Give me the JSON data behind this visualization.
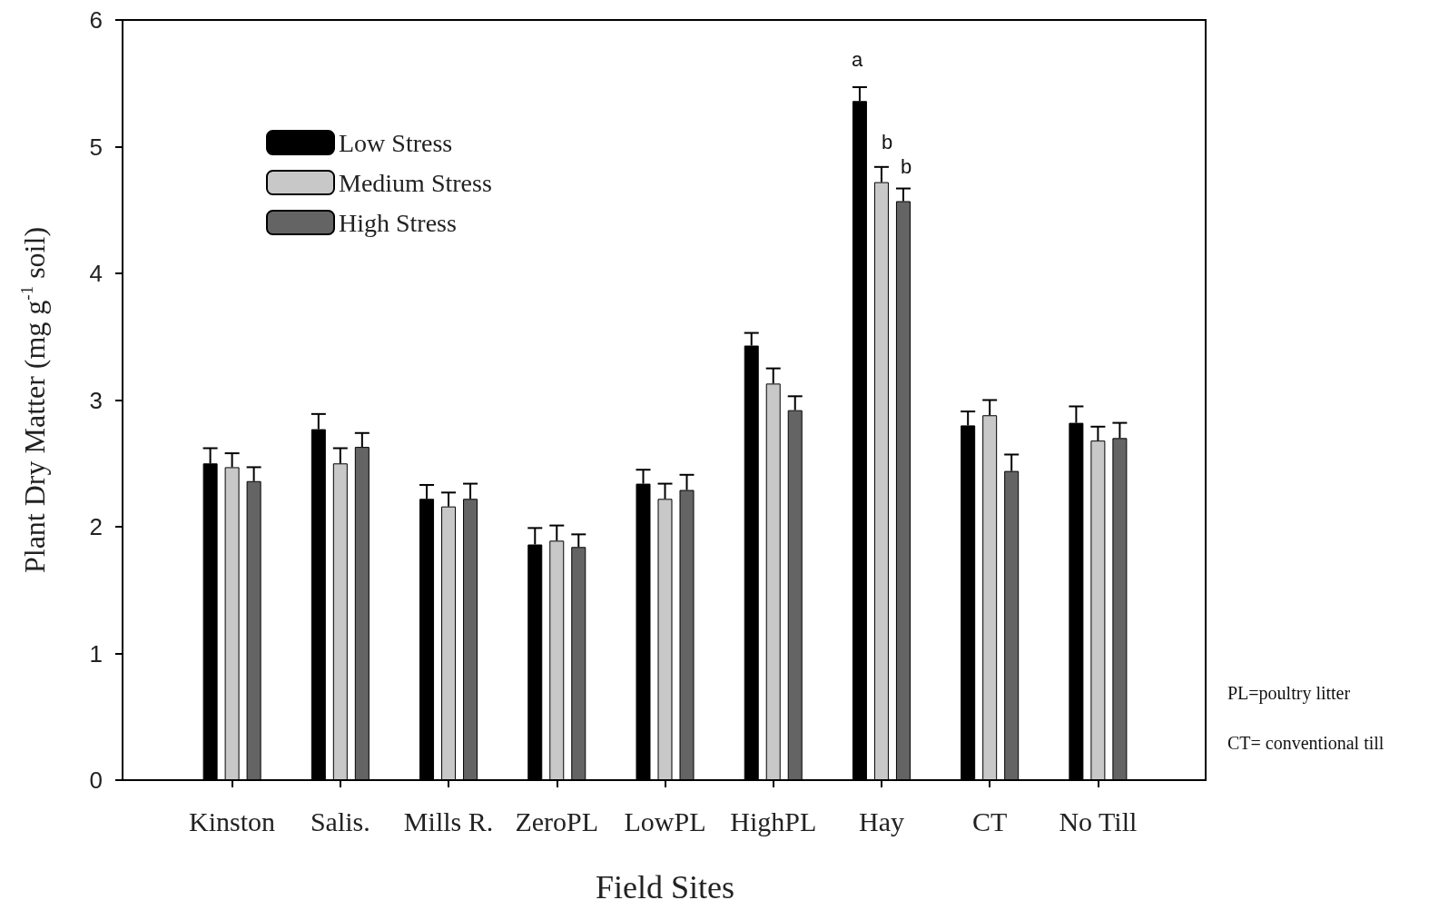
{
  "chart_data": {
    "type": "bar",
    "xlabel": "Field Sites",
    "ylabel": "Plant Dry Matter (mg g$^{-1}$ soil)",
    "categories": [
      "Kinston",
      "Salis.",
      "Mills R.",
      "ZeroPL",
      "LowPL",
      "HighPL",
      "Hay",
      "CT",
      "No Till"
    ],
    "series": [
      {
        "name": "Low Stress",
        "color": "#000000",
        "values": [
          2.5,
          2.77,
          2.22,
          1.86,
          2.34,
          3.43,
          5.36,
          2.8,
          2.82
        ],
        "errors": [
          0.12,
          0.12,
          0.11,
          0.13,
          0.11,
          0.1,
          0.11,
          0.11,
          0.13
        ]
      },
      {
        "name": "Medium Stress",
        "color": "#c8c8c8",
        "values": [
          2.47,
          2.5,
          2.16,
          1.89,
          2.22,
          3.13,
          4.72,
          2.88,
          2.68
        ],
        "errors": [
          0.11,
          0.12,
          0.11,
          0.12,
          0.12,
          0.12,
          0.12,
          0.12,
          0.11
        ]
      },
      {
        "name": "High Stress",
        "color": "#646464",
        "values": [
          2.36,
          2.63,
          2.22,
          1.84,
          2.29,
          2.92,
          4.57,
          2.44,
          2.7
        ],
        "errors": [
          0.11,
          0.11,
          0.12,
          0.1,
          0.12,
          0.11,
          0.1,
          0.13,
          0.12
        ]
      }
    ],
    "ylim": [
      0,
      6
    ],
    "yticks": [
      0,
      1,
      2,
      3,
      4,
      5,
      6
    ],
    "grid": false,
    "legend": "top left",
    "annotations": [
      "a",
      "b",
      "b",
      "PL=poultry litter",
      "CT= conventional till"
    ]
  }
}
